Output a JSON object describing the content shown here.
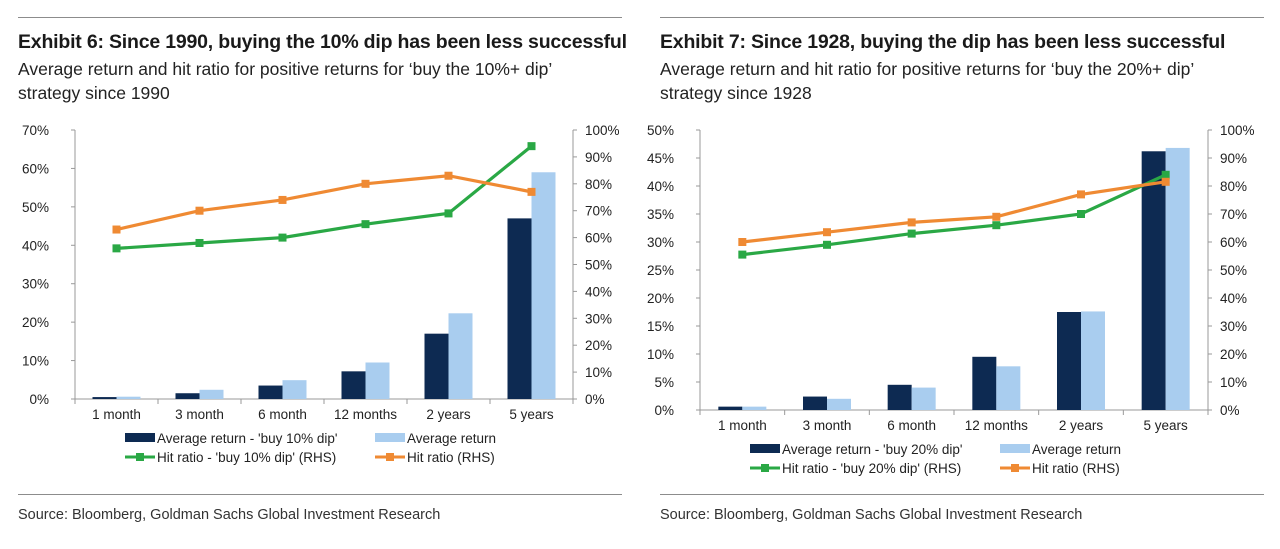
{
  "colors": {
    "dip_bar": "#0d2a52",
    "avg_bar": "#a9cdef",
    "dip_hit": "#2aa845",
    "avg_hit": "#ef8a33",
    "axis": "#999999"
  },
  "charts": [
    {
      "title": "Exhibit 6: Since 1990, buying the 10% dip has been less successful",
      "subtitle": "Average return and hit ratio for positive returns for ‘buy the 10%+ dip’ strategy since 1990",
      "source": "Source: Bloomberg, Goldman Sachs Global Investment Research",
      "legend": [
        "Average return - 'buy 10% dip'",
        "Average return",
        "Hit ratio - 'buy 10% dip' (RHS)",
        "Hit ratio (RHS)"
      ]
    },
    {
      "title": "Exhibit 7: Since 1928, buying the dip has been less successful",
      "subtitle": "Average return and hit ratio for positive returns for ‘buy the 20%+ dip’ strategy since 1928",
      "source": "Source: Bloomberg, Goldman Sachs Global Investment Research",
      "legend": [
        "Average return - 'buy 20% dip'",
        "Average return",
        "Hit ratio - 'buy 20% dip' (RHS)",
        "Hit ratio (RHS)"
      ]
    }
  ],
  "chart_data": [
    {
      "type": "bar",
      "title": "Exhibit 6: Since 1990, buying the 10% dip has been less successful",
      "categories": [
        "1 month",
        "3 month",
        "6 month",
        "12 months",
        "2 years",
        "5 years"
      ],
      "ylim": [
        0,
        70
      ],
      "yticks": [
        "0%",
        "10%",
        "20%",
        "30%",
        "40%",
        "50%",
        "60%",
        "70%"
      ],
      "y2lim": [
        0,
        100
      ],
      "y2ticks": [
        "0%",
        "10%",
        "20%",
        "30%",
        "40%",
        "50%",
        "60%",
        "70%",
        "80%",
        "90%",
        "100%"
      ],
      "series": [
        {
          "name": "Average return - 'buy 10% dip'",
          "kind": "bar",
          "axis": "left",
          "values": [
            0.5,
            1.5,
            3.5,
            7.2,
            17,
            47
          ]
        },
        {
          "name": "Average return",
          "kind": "bar",
          "axis": "left",
          "values": [
            0.6,
            2.4,
            4.9,
            9.5,
            22.3,
            59
          ]
        },
        {
          "name": "Hit ratio - 'buy 10% dip' (RHS)",
          "kind": "line",
          "axis": "right",
          "values": [
            56,
            58,
            60,
            65,
            69,
            94
          ]
        },
        {
          "name": "Hit ratio (RHS)",
          "kind": "line",
          "axis": "right",
          "values": [
            63,
            70,
            74,
            80,
            83,
            77
          ]
        }
      ]
    },
    {
      "type": "bar",
      "title": "Exhibit 7: Since 1928, buying the dip has been less successful",
      "categories": [
        "1 month",
        "3 month",
        "6 month",
        "12 months",
        "2 years",
        "5 years"
      ],
      "ylim": [
        0,
        50
      ],
      "yticks": [
        "0%",
        "5%",
        "10%",
        "15%",
        "20%",
        "25%",
        "30%",
        "35%",
        "40%",
        "45%",
        "50%"
      ],
      "y2lim": [
        0,
        100
      ],
      "y2ticks": [
        "0%",
        "10%",
        "20%",
        "30%",
        "40%",
        "50%",
        "60%",
        "70%",
        "80%",
        "90%",
        "100%"
      ],
      "series": [
        {
          "name": "Average return - 'buy 20% dip'",
          "kind": "bar",
          "axis": "left",
          "values": [
            0.6,
            2.4,
            4.5,
            9.5,
            17.5,
            46.2
          ]
        },
        {
          "name": "Average return",
          "kind": "bar",
          "axis": "left",
          "values": [
            0.6,
            2.0,
            4.0,
            7.8,
            17.6,
            46.8
          ]
        },
        {
          "name": "Hit ratio - 'buy 20% dip' (RHS)",
          "kind": "line",
          "axis": "right",
          "values": [
            55.5,
            59,
            63,
            66,
            70,
            84
          ]
        },
        {
          "name": "Hit ratio (RHS)",
          "kind": "line",
          "axis": "right",
          "values": [
            60,
            63.5,
            67,
            69,
            77,
            81.5
          ]
        }
      ]
    }
  ]
}
